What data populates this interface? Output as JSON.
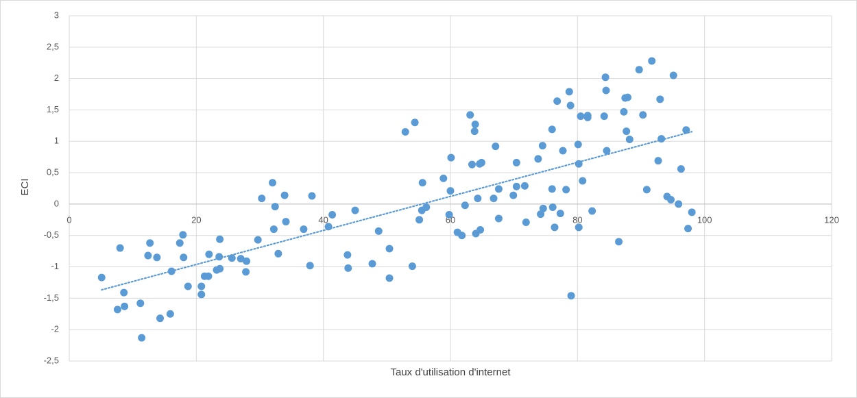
{
  "chart_data": {
    "type": "scatter",
    "x_label": "Taux d'utilisation d'internet",
    "y_label": "ECI",
    "x": [
      5.1,
      8.0,
      7.6,
      8.6,
      8.7,
      11.2,
      11.4,
      12.4,
      12.7,
      13.8,
      14.3,
      15.9,
      16.1,
      17.4,
      17.9,
      18.0,
      18.7,
      20.8,
      20.8,
      21.3,
      21.9,
      22.0,
      23.2,
      23.6,
      23.7,
      23.7,
      25.6,
      27.0,
      27.9,
      27.8,
      29.7,
      30.3,
      32.0,
      32.2,
      32.4,
      32.9,
      33.9,
      34.1,
      36.9,
      37.9,
      38.2,
      40.8,
      41.4,
      43.8,
      43.9,
      45.0,
      47.7,
      48.7,
      50.4,
      50.4,
      52.9,
      54.0,
      54.4,
      55.1,
      55.5,
      55.6,
      56.2,
      58.9,
      59.8,
      60.0,
      60.1,
      61.1,
      61.8,
      62.3,
      63.1,
      63.4,
      63.8,
      63.9,
      64.0,
      64.3,
      64.6,
      64.7,
      64.9,
      66.8,
      67.1,
      67.6,
      67.6,
      69.9,
      70.4,
      70.4,
      71.7,
      71.9,
      73.8,
      74.2,
      74.5,
      74.6,
      76.0,
      76.1,
      76.0,
      76.4,
      76.8,
      77.3,
      77.7,
      78.2,
      78.7,
      78.9,
      79.0,
      80.1,
      80.2,
      80.2,
      80.5,
      80.8,
      81.6,
      81.6,
      82.3,
      84.2,
      84.4,
      84.5,
      84.6,
      86.5,
      87.3,
      87.5,
      87.7,
      87.9,
      88.2,
      89.7,
      90.3,
      90.9,
      91.7,
      92.7,
      93.0,
      93.2,
      94.1,
      94.7,
      95.1,
      95.9,
      96.3,
      97.1,
      97.4,
      98.0
    ],
    "series": [
      {
        "color": "#5b9bd5",
        "values": [
          -1.17,
          -0.7,
          -1.68,
          -1.41,
          -1.63,
          -1.58,
          -2.13,
          -0.82,
          -0.62,
          -0.85,
          -1.82,
          -1.75,
          -1.07,
          -0.62,
          -0.49,
          -0.85,
          -1.31,
          -1.31,
          -1.44,
          -1.15,
          -1.15,
          -0.8,
          -1.05,
          -0.84,
          -0.56,
          -1.03,
          -0.86,
          -0.87,
          -0.91,
          -1.08,
          -0.57,
          0.09,
          0.34,
          -0.4,
          -0.04,
          -0.79,
          0.14,
          -0.28,
          -0.4,
          -0.98,
          0.13,
          -0.36,
          -0.17,
          -0.81,
          -1.02,
          -0.1,
          -0.95,
          -0.43,
          -0.71,
          -1.18,
          1.15,
          -0.99,
          1.3,
          -0.25,
          -0.1,
          0.34,
          -0.05,
          0.41,
          -0.17,
          0.21,
          0.74,
          -0.45,
          -0.5,
          -0.02,
          1.42,
          0.63,
          1.16,
          1.27,
          -0.47,
          0.09,
          0.64,
          -0.41,
          0.66,
          0.09,
          0.92,
          -0.23,
          0.24,
          0.14,
          0.66,
          0.28,
          0.29,
          -0.29,
          0.72,
          -0.16,
          0.93,
          -0.07,
          0.24,
          -0.05,
          1.19,
          -0.37,
          1.64,
          -0.15,
          0.85,
          0.23,
          1.79,
          1.57,
          -1.46,
          0.95,
          0.64,
          -0.37,
          1.4,
          0.37,
          1.38,
          1.41,
          -0.11,
          1.4,
          2.02,
          1.81,
          0.85,
          -0.6,
          1.47,
          1.69,
          1.16,
          1.7,
          1.03,
          2.14,
          1.42,
          0.23,
          2.28,
          0.69,
          1.67,
          1.04,
          0.12,
          0.07,
          2.05,
          0.0,
          0.56,
          1.18,
          -0.39,
          -0.13
        ]
      }
    ],
    "trendline": "linear",
    "xlim": [
      0,
      120
    ],
    "xticks": [
      0,
      20,
      40,
      60,
      80,
      100,
      120
    ],
    "ylim": [
      -2.5,
      3
    ],
    "yticks": [
      {
        "value": -2.5,
        "label": "-2,5"
      },
      -2,
      {
        "value": -1.5,
        "label": "-1,5"
      },
      -1,
      {
        "value": -0.5,
        "label": "-0,5"
      },
      0,
      {
        "value": 0.5,
        "label": "0,5"
      },
      1,
      {
        "value": 1.5,
        "label": "1,5"
      },
      2,
      {
        "value": 2.5,
        "label": "2,5"
      },
      3
    ],
    "grid": true
  }
}
